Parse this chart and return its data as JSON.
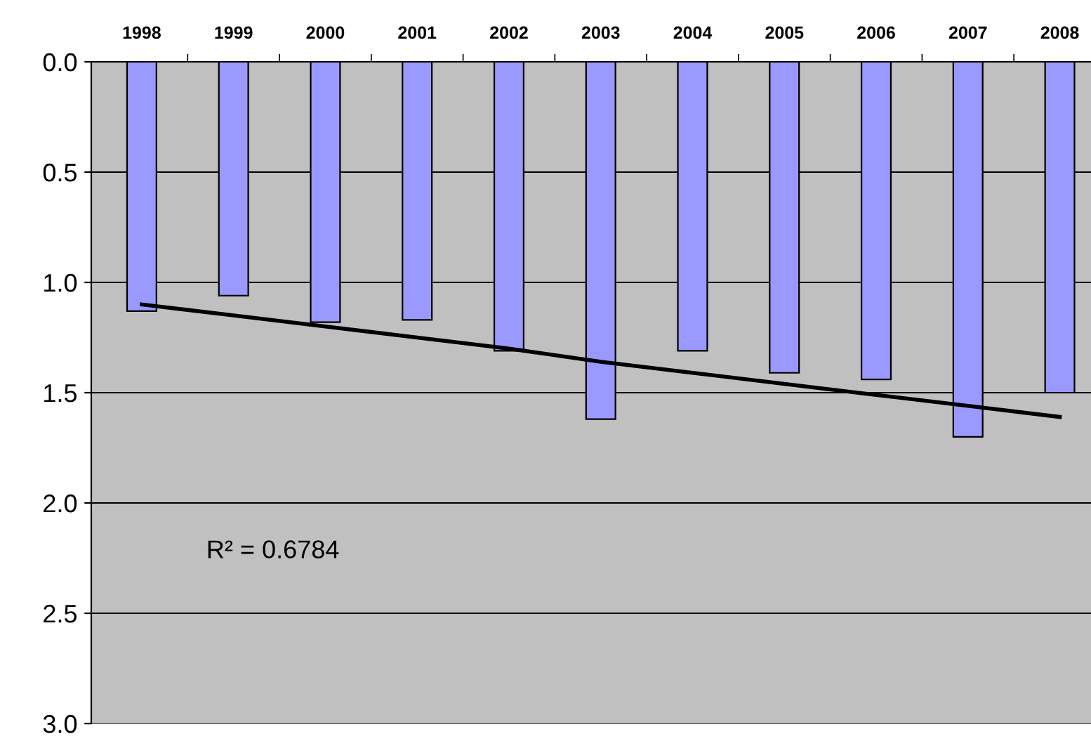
{
  "chart_data": {
    "type": "bar",
    "categories": [
      "1998",
      "1999",
      "2000",
      "2001",
      "2002",
      "2003",
      "2004",
      "2005",
      "2006",
      "2007",
      "2008"
    ],
    "series": [
      {
        "color": "#9999ff",
        "values": [
          1.13,
          1.06,
          1.18,
          1.17,
          1.31,
          1.62,
          1.31,
          1.41,
          1.44,
          1.7,
          1.5
        ]
      },
      {
        "type": "line",
        "color": "#000000",
        "values": [
          1.1,
          1.15,
          1.2,
          1.25,
          1.3,
          1.36,
          1.41,
          1.46,
          1.51,
          1.56,
          1.61
        ]
      }
    ],
    "ylim": [
      3.0,
      0.0
    ],
    "yticks": [
      {
        "value": 0,
        "label": "0.0"
      },
      {
        "value": 0.5,
        "label": "0.5"
      },
      {
        "value": 1,
        "label": "1.0"
      },
      {
        "value": 1.5,
        "label": "1.5"
      },
      {
        "value": 2,
        "label": "2.0"
      },
      {
        "value": 2.5,
        "label": "2.5"
      },
      {
        "value": 3,
        "label": "3.0"
      }
    ],
    "grid": "y",
    "legend": false,
    "marker": "none",
    "line_style": "solid",
    "annotations": [
      "R² = 0.6784"
    ]
  }
}
